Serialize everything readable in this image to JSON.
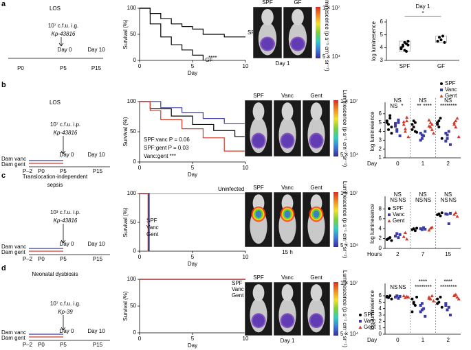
{
  "panels": [
    {
      "label": "a",
      "schematic": {
        "title": [
          "LOS"
        ],
        "dose": "10⁷ c.f.u. i.g.",
        "strain": "Kp-43816",
        "day0": "Day 0",
        "day10": "Day 10",
        "ticks": [
          "P0",
          "P5",
          "P15"
        ]
      },
      "survival": {
        "type": "line",
        "xlabel": "Day",
        "ylabel": "Survival (%)",
        "xlim": [
          0,
          10
        ],
        "ylim": [
          0,
          100
        ],
        "xticks": [
          0,
          5,
          10
        ],
        "yticks": [
          0,
          50,
          100
        ],
        "annotation": "****",
        "series": [
          {
            "name": "SPF",
            "color": "#000000",
            "x": [
              0,
              1,
              1,
              2,
              2,
              3,
              3,
              4,
              4,
              5,
              5,
              6,
              6,
              8,
              8,
              10
            ],
            "values": [
              100,
              100,
              90,
              90,
              80,
              80,
              70,
              70,
              65,
              65,
              60,
              60,
              50,
              50,
              45,
              45
            ]
          },
          {
            "name": "GF",
            "color": "#000000",
            "x": [
              0,
              1,
              1,
              2,
              2,
              3,
              3,
              4,
              4,
              5,
              5,
              6,
              6
            ],
            "values": [
              100,
              100,
              70,
              70,
              45,
              45,
              30,
              30,
              20,
              20,
              10,
              10,
              0
            ]
          }
        ]
      },
      "images": {
        "labels": [
          "SPF",
          "GF"
        ],
        "caption": "Day 1",
        "scale_max": "1 × 10⁷",
        "scale_min": "5 × 10⁴",
        "scale_title": "Luminescence (p s⁻¹ cm⁻² sr⁻¹)"
      },
      "dots": {
        "type": "scatter",
        "title": "Day 1",
        "ylabel": "log luminesence",
        "ylim": [
          3,
          6
        ],
        "yticks": [
          3,
          4,
          5,
          6
        ],
        "annotation": "*",
        "series": [
          {
            "name": "SPF",
            "color": "#000000",
            "marker": "circle",
            "values": [
              4.0,
              4.2,
              3.8,
              4.3,
              4.5,
              3.9,
              4.1,
              4.4,
              3.7,
              4.2
            ]
          },
          {
            "name": "GF",
            "color": "#000000",
            "marker": "circle",
            "values": [
              4.5,
              4.8,
              4.6,
              4.9,
              4.4
            ]
          }
        ]
      }
    },
    {
      "label": "b",
      "schematic": {
        "title": [
          "LOS"
        ],
        "dose": "10⁷ c.f.u. i.p.",
        "strain": "Kp-43816",
        "day0": "Day 0",
        "day10": "Day 10",
        "dams": [
          "Dam vanc",
          "Dam gent"
        ],
        "ticks": [
          "P–2",
          "P0",
          "P5",
          "P15"
        ]
      },
      "survival": {
        "type": "line",
        "xlabel": "Day",
        "ylabel": "Survival (%)",
        "xlim": [
          0,
          10
        ],
        "ylim": [
          0,
          100
        ],
        "xticks": [
          0,
          5,
          10
        ],
        "yticks": [
          0,
          50,
          100
        ],
        "notes": [
          "SPF:vanc P = 0.06",
          "SPF:gent P = 0.03",
          "Vanc:gent ***"
        ],
        "series": [
          {
            "name": "Vanc",
            "color": "#3b3ba0",
            "x": [
              0,
              2,
              2,
              4,
              4,
              6,
              6,
              8,
              8,
              10
            ],
            "values": [
              100,
              100,
              90,
              90,
              82,
              82,
              72,
              72,
              64,
              64
            ]
          },
          {
            "name": "SPF",
            "color": "#000000",
            "x": [
              0,
              1,
              1,
              3,
              3,
              5,
              5,
              7,
              7,
              9,
              9,
              10
            ],
            "values": [
              100,
              100,
              88,
              88,
              76,
              76,
              62,
              62,
              52,
              52,
              42,
              42
            ]
          },
          {
            "name": "Gent",
            "color": "#d03a2a",
            "x": [
              0,
              1,
              1,
              2,
              2,
              4,
              4,
              6,
              6,
              8,
              8,
              10
            ],
            "values": [
              100,
              100,
              85,
              85,
              70,
              70,
              55,
              55,
              40,
              40,
              18,
              18
            ]
          }
        ]
      },
      "images": {
        "labels": [
          "SPF",
          "Vanc",
          "Gent"
        ],
        "scale_max": "1 × 10⁷",
        "scale_min": "5 × 10⁴",
        "scale_title": "Luminescence (p s⁻¹ cm⁻² sr⁻¹)"
      },
      "dots": {
        "type": "scatter",
        "xlabel": "Day",
        "ylabel": "log luminesence",
        "categories": [
          "0",
          "1",
          "2"
        ],
        "ylim": [
          1,
          7
        ],
        "yticks": [
          1,
          2,
          3,
          4,
          5,
          6
        ],
        "legend": "top-right",
        "stats": [
          {
            "top": "NS",
            "pair": [
              "NS",
              "*"
            ]
          },
          {
            "top": "NS",
            "pair": [
              "**",
              "****"
            ]
          },
          {
            "top": "NS",
            "pair": [
              "****",
              "****"
            ]
          }
        ],
        "series": [
          {
            "name": "SPF",
            "color": "#000000",
            "marker": "circle",
            "values": [
              [
                5.2,
                4.8,
                5.5,
                4.5,
                5.0,
                4.2,
                5.8,
                3.8
              ],
              [
                4.8,
                4.5,
                5.0,
                3.9,
                4.2,
                5.2,
                4.0
              ],
              [
                5.0,
                4.5,
                5.5,
                3.2,
                4.8,
                5.2
              ]
            ]
          },
          {
            "name": "Vanc",
            "color": "#3b3ba0",
            "marker": "square",
            "values": [
              [
                4.9,
                4.0,
                5.3,
                3.5,
                4.6,
                4.2,
                5.0
              ],
              [
                3.8,
                3.2,
                3.5,
                4.0,
                3.0,
                3.6
              ],
              [
                3.8,
                3.2,
                4.0,
                2.5,
                2.9,
                3.6
              ]
            ]
          },
          {
            "name": "Gent",
            "color": "#d03a2a",
            "marker": "triangle",
            "values": [
              [
                5.1,
                4.3,
                5.6,
                3.4,
                4.8,
                4.0,
                5.2
              ],
              [
                4.6,
                5.0,
                4.2,
                3.8,
                5.3,
                4.5,
                4.8
              ],
              [
                5.0,
                4.5,
                5.5,
                3.4,
                4.8,
                5.2
              ]
            ]
          }
        ]
      }
    },
    {
      "label": "c",
      "schematic": {
        "title": [
          "Translocation-independent",
          "sepsis"
        ],
        "dose": "10³ c.f.u. i.p.",
        "strain": "Kp-43816",
        "day0": "Day 0",
        "day10": "Day 10",
        "dams": [
          "Dam vanc",
          "Dam gent"
        ],
        "ticks": [
          "P–2",
          "P0",
          "P5",
          "P15"
        ]
      },
      "survival": {
        "type": "line",
        "xlabel": "Day",
        "ylabel": "Survival (%)",
        "xlim": [
          0,
          10
        ],
        "ylim": [
          0,
          100
        ],
        "xticks": [
          0,
          5,
          10
        ],
        "yticks": [
          0,
          50,
          100
        ],
        "series": [
          {
            "name": "Uninfected",
            "color": "#aaaaaa",
            "x": [
              0,
              10
            ],
            "values": [
              100,
              100
            ]
          },
          {
            "name": "SPF",
            "color": "#000000",
            "x": [
              0,
              0.9,
              0.9
            ],
            "values": [
              100,
              100,
              0
            ]
          },
          {
            "name": "Vanc",
            "color": "#3b3ba0",
            "x": [
              0,
              0.85,
              0.85
            ],
            "values": [
              100,
              100,
              0
            ]
          },
          {
            "name": "Gent",
            "color": "#d03a2a",
            "x": [
              0,
              0.8,
              0.8
            ],
            "values": [
              100,
              100,
              0
            ]
          }
        ]
      },
      "images": {
        "labels": [
          "SPF",
          "Vanc",
          "Gent"
        ],
        "caption": "15 h",
        "scale_max": "1 × 10⁷",
        "scale_min": "5 × 10⁴",
        "scale_title": "Luminescence (p s⁻¹ cm⁻² sr⁻¹)"
      },
      "dots": {
        "type": "scatter",
        "xlabel": "Hours",
        "ylabel": "log luminesence",
        "categories": [
          "2",
          "7",
          "15"
        ],
        "ylim": [
          0,
          10
        ],
        "yticks": [
          0,
          2,
          4,
          6,
          8
        ],
        "legend": "upper-left",
        "stats": [
          {
            "top": "NS",
            "pair": [
              "NS",
              "NS"
            ]
          },
          {
            "top": "NS",
            "pair": [
              "NS",
              "NS"
            ]
          },
          {
            "top": "NS",
            "pair": [
              "NS",
              "NS"
            ]
          }
        ],
        "series": [
          {
            "name": "SPF",
            "color": "#000000",
            "marker": "circle",
            "values": [
              [
                1.8,
                2.0,
                2.2,
                1.6
              ],
              [
                3.8,
                4.0,
                3.6,
                4.1
              ],
              [
                6.8,
                7.0,
                6.6,
                7.2
              ]
            ]
          },
          {
            "name": "Vanc",
            "color": "#3b3ba0",
            "marker": "square",
            "values": [
              [
                2.5,
                3.0,
                2.2,
                2.8
              ],
              [
                4.0,
                3.8,
                4.2,
                3.9
              ],
              [
                7.0,
                6.9,
                5.0,
                7.1
              ]
            ]
          },
          {
            "name": "Gent",
            "color": "#d03a2a",
            "marker": "triangle",
            "values": [
              [
                2.4,
                3.2,
                1.9
              ],
              [
                3.7,
                4.1,
                4.3
              ],
              [
                6.9,
                7.2,
                6.5
              ]
            ]
          }
        ]
      }
    },
    {
      "label": "d",
      "schematic": {
        "title": [
          "Neonatal dysbiosis"
        ],
        "dose": "10⁷ c.f.u. i.g.",
        "strain": "Kp-39",
        "day0": "Day 0",
        "day10": "Day 10",
        "dams": [
          "Dam vanc",
          "Dam gent"
        ],
        "ticks": [
          "P–2",
          "P0",
          "P5",
          "P15"
        ]
      },
      "survival": {
        "type": "line",
        "xlabel": "Day",
        "ylabel": "Survival (%)",
        "xlim": [
          0,
          10
        ],
        "ylim": [
          0,
          100
        ],
        "xticks": [
          0,
          5,
          10
        ],
        "yticks": [
          0,
          50,
          100
        ],
        "series": [
          {
            "name": "SPF",
            "color": "#000000",
            "x": [
              0,
              10
            ],
            "values": [
              100,
              100
            ]
          },
          {
            "name": "Vanc",
            "color": "#3b3ba0",
            "x": [
              0,
              10
            ],
            "values": [
              100,
              100
            ]
          },
          {
            "name": "Gent",
            "color": "#d03a2a",
            "x": [
              0,
              10
            ],
            "values": [
              100,
              100
            ]
          }
        ]
      },
      "images": {
        "labels": [
          "SPF",
          "Vanc",
          "Gent"
        ],
        "caption": "Day 1",
        "scale_max": "1 × 10⁷",
        "scale_min": "5 × 10⁴",
        "scale_title": "Luminescence (p s⁻¹ cm⁻² sr⁻¹)"
      },
      "dots": {
        "type": "scatter",
        "xlabel": "Day",
        "ylabel": "log luminesence",
        "categories": [
          "0",
          "1",
          "2"
        ],
        "ylim": [
          0,
          7.5
        ],
        "yticks": [
          0,
          1,
          2,
          3,
          4,
          5,
          6
        ],
        "legend": "lower-left",
        "stats": [
          {
            "pair": [
              "NS",
              "NS"
            ]
          },
          {
            "top": "****",
            "pair": [
              "****",
              "****"
            ]
          },
          {
            "top": "****",
            "pair": [
              "****",
              "****"
            ]
          }
        ],
        "series": [
          {
            "name": "SPF",
            "color": "#000000",
            "marker": "circle",
            "values": [
              [
                5.9,
                5.7,
                6.0,
                5.5,
                5.8
              ],
              [
                5.5,
                5.0,
                4.5,
                5.8,
                3.5,
                4.8
              ],
              [
                5.5,
                5.0,
                5.8,
                4.2,
                4.8
              ]
            ]
          },
          {
            "name": "Vanc",
            "color": "#3b3ba0",
            "marker": "square",
            "values": [
              [
                5.8,
                6.0,
                5.6,
                5.9
              ],
              [
                4.5,
                3.8,
                4.0,
                2.8,
                3.5,
                4.8
              ],
              [
                4.5,
                3.8,
                4.2,
                3.0,
                4.8
              ]
            ]
          },
          {
            "name": "Gent",
            "color": "#d03a2a",
            "marker": "triangle",
            "values": [
              [
                6.0,
                5.7,
                5.9,
                5.8
              ],
              [
                5.8,
                5.5,
                6.0,
                5.2,
                5.6
              ],
              [
                6.0,
                6.2,
                5.8,
                5.5,
                6.1
              ]
            ]
          }
        ]
      }
    }
  ]
}
